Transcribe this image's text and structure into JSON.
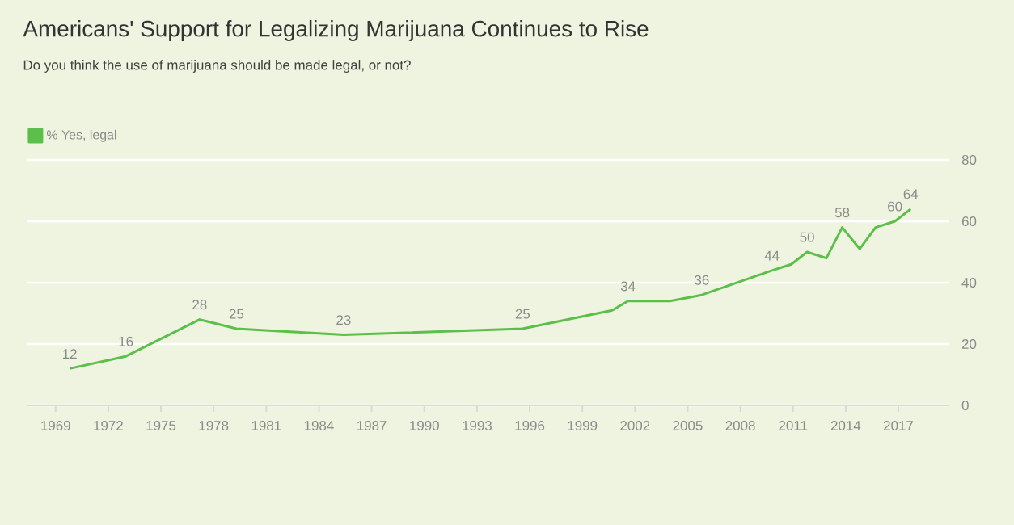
{
  "chart_data": {
    "type": "line",
    "title": "Americans' Support for Legalizing Marijuana Continues to Rise",
    "subtitle": "Do you think the use of marijuana should be made legal, or not?",
    "x": [
      1969.8,
      1973.0,
      1977.2,
      1979.3,
      1985.4,
      1995.6,
      2000.7,
      2001.6,
      2004.0,
      2005.8,
      2009.8,
      2010.9,
      2011.8,
      2012.9,
      2013.8,
      2014.8,
      2015.7,
      2016.8,
      2017.7
    ],
    "series": [
      {
        "name": "% Yes, legal",
        "color": "#5cbf4a",
        "values": [
          12,
          16,
          28,
          25,
          23,
          25,
          31,
          34,
          34,
          36,
          44,
          46,
          50,
          48,
          58,
          51,
          58,
          60,
          64
        ],
        "value_labels": [
          "12",
          "16",
          "28",
          "25",
          "23",
          "25",
          null,
          "34",
          null,
          "36",
          "44",
          null,
          "50",
          null,
          "58",
          null,
          null,
          "60",
          "64"
        ]
      }
    ],
    "xlim": [
      1967.4,
      2019.9
    ],
    "ylim": [
      0,
      80
    ],
    "xticks": [
      1969,
      1972,
      1975,
      1978,
      1981,
      1984,
      1987,
      1990,
      1993,
      1996,
      1999,
      2002,
      2005,
      2008,
      2011,
      2014,
      2017
    ],
    "yticks": [
      0,
      20,
      40,
      60,
      80
    ],
    "grid": "y",
    "legend": "top left",
    "marker": "none",
    "line_style": "solid"
  }
}
